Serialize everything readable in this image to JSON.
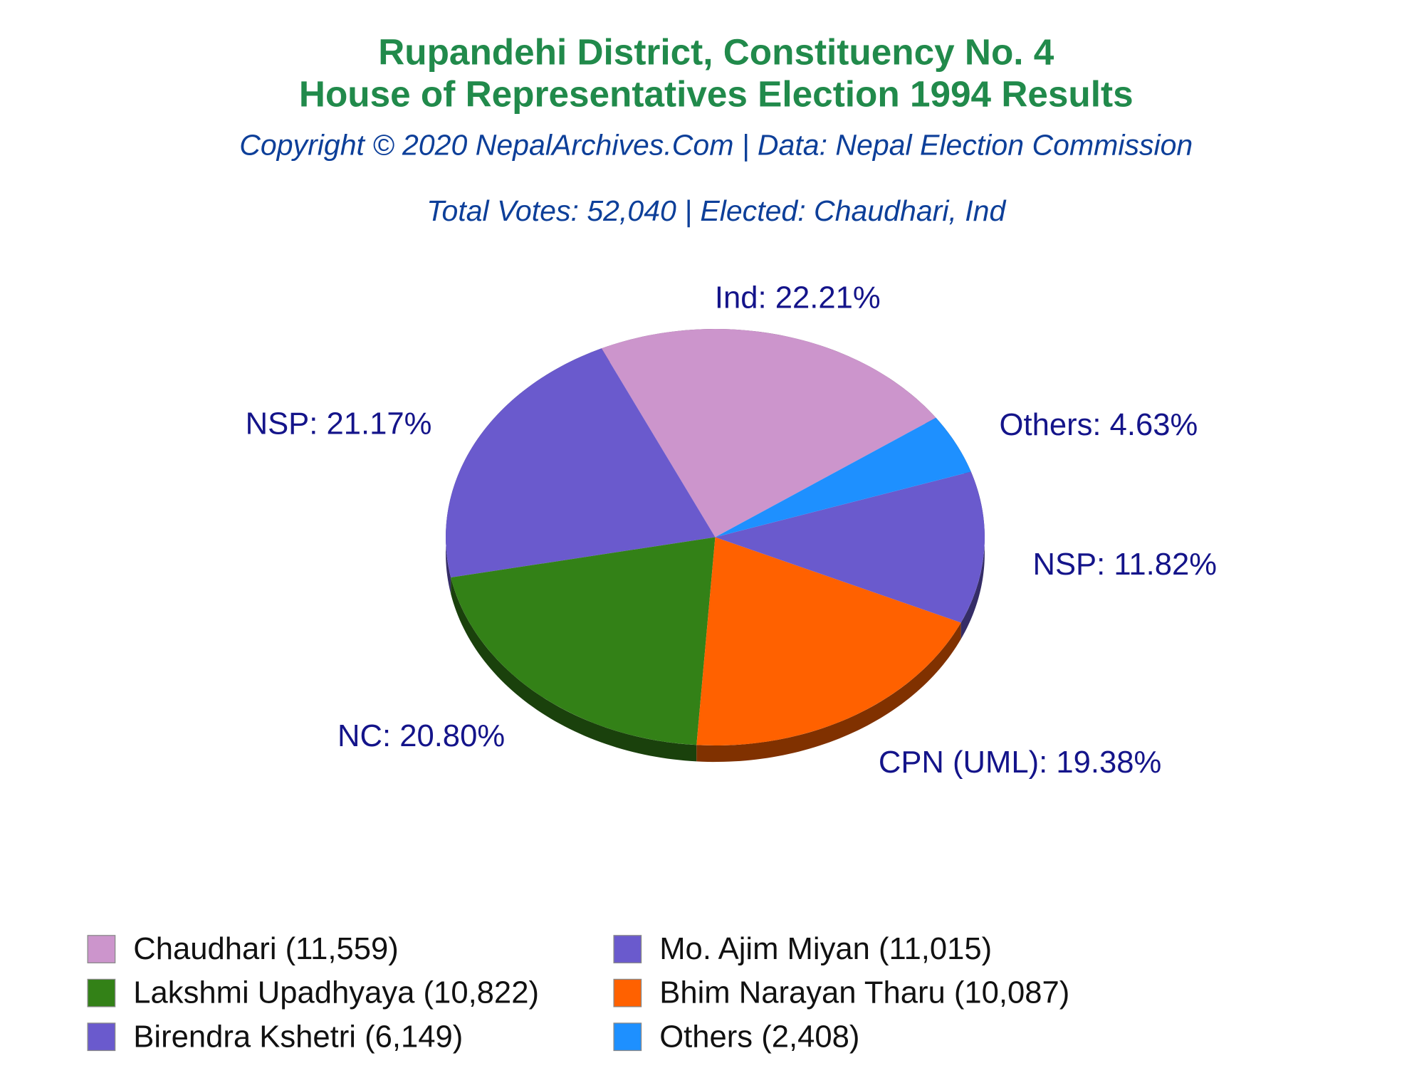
{
  "chart_data": {
    "type": "pie",
    "title": [
      "Rupandehi District, Constituency No. 4",
      "House of Representatives Election 1994 Results"
    ],
    "subtitle": "Copyright © 2020 NepalArchives.Com | Data: Nepal Election Commission",
    "note": "Total Votes: 52,040 | Elected: Chaudhari, Ind",
    "categories": [
      "Chaudhari (11,559)",
      "Mo. Ajim Miyan (11,015)",
      "Lakshmi Upadhyaya (10,822)",
      "Bhim Narayan Tharu (10,087)",
      "Birendra Kshetri (6,149)",
      "Others (2,408)"
    ],
    "values": [
      22.21,
      21.17,
      20.8,
      19.38,
      11.82,
      4.63
    ],
    "value_labels": [
      "Ind: 22.21%",
      "NSP: 21.17%",
      "NC: 20.80%",
      "CPN (UML): 19.38%",
      "NSP: 11.82%",
      "Others: 4.63%"
    ],
    "colors": [
      "#cc95cc",
      "#6a5acd",
      "#338117",
      "#ff6100",
      "#6a5acd",
      "#1e90ff"
    ]
  }
}
